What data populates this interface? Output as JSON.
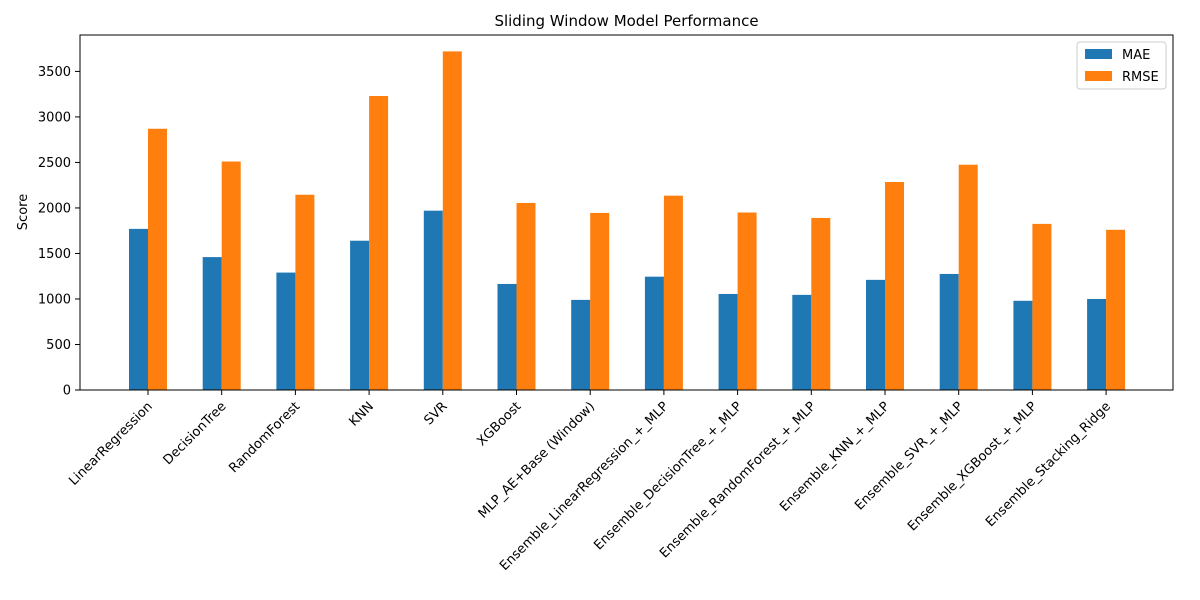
{
  "chart_data": {
    "type": "bar",
    "title": "Sliding Window Model Performance",
    "xlabel": "",
    "ylabel": "Score",
    "ylim": [
      0,
      3900
    ],
    "yticks": [
      0,
      500,
      1000,
      1500,
      2000,
      2500,
      3000,
      3500
    ],
    "grid": false,
    "legend_position": "top-right",
    "categories": [
      "LinearRegression",
      "DecisionTree",
      "RandomForest",
      "KNN",
      "SVR",
      "XGBoost",
      "MLP_AE+Base (Window)",
      "Ensemble_LinearRegression_+_MLP",
      "Ensemble_DecisionTree_+_MLP",
      "Ensemble_RandomForest_+_MLP",
      "Ensemble_KNN_+_MLP",
      "Ensemble_SVR_+_MLP",
      "Ensemble_XGBoost_+_MLP",
      "Ensemble_Stacking_Ridge"
    ],
    "series": [
      {
        "name": "MAE",
        "color": "#1f77b4",
        "values": [
          1770,
          1460,
          1290,
          1640,
          1970,
          1165,
          990,
          1245,
          1055,
          1045,
          1210,
          1275,
          980,
          1000
        ]
      },
      {
        "name": "RMSE",
        "color": "#ff7f0e",
        "values": [
          2870,
          2510,
          2145,
          3230,
          3720,
          2055,
          1945,
          2135,
          1950,
          1890,
          2285,
          2475,
          1825,
          1760
        ]
      }
    ]
  }
}
